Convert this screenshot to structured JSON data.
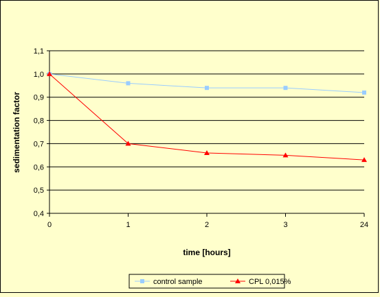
{
  "chart_data": {
    "type": "line",
    "categories": [
      "0",
      "1",
      "2",
      "3",
      "24"
    ],
    "series": [
      {
        "name": "control sample",
        "values": [
          1.0,
          0.96,
          0.94,
          0.94,
          0.92
        ],
        "color": "#99CCFF",
        "marker": "square"
      },
      {
        "name": "CPL 0,015%",
        "values": [
          1.0,
          0.7,
          0.66,
          0.65,
          0.63
        ],
        "color": "#FF0000",
        "marker": "triangle"
      }
    ],
    "xlabel": "time [hours]",
    "ylabel": "sedimentation factor",
    "ylim": [
      0.4,
      1.1
    ],
    "yticks": [
      "0,4",
      "0,5",
      "0,6",
      "0,7",
      "0,8",
      "0,9",
      "1,0",
      "1,1"
    ],
    "grid": true,
    "legend_position": "bottom-center",
    "colors": {
      "background": "#FFFFCC",
      "plot_area": "#FFFFCC",
      "gridline": "#000000"
    }
  }
}
